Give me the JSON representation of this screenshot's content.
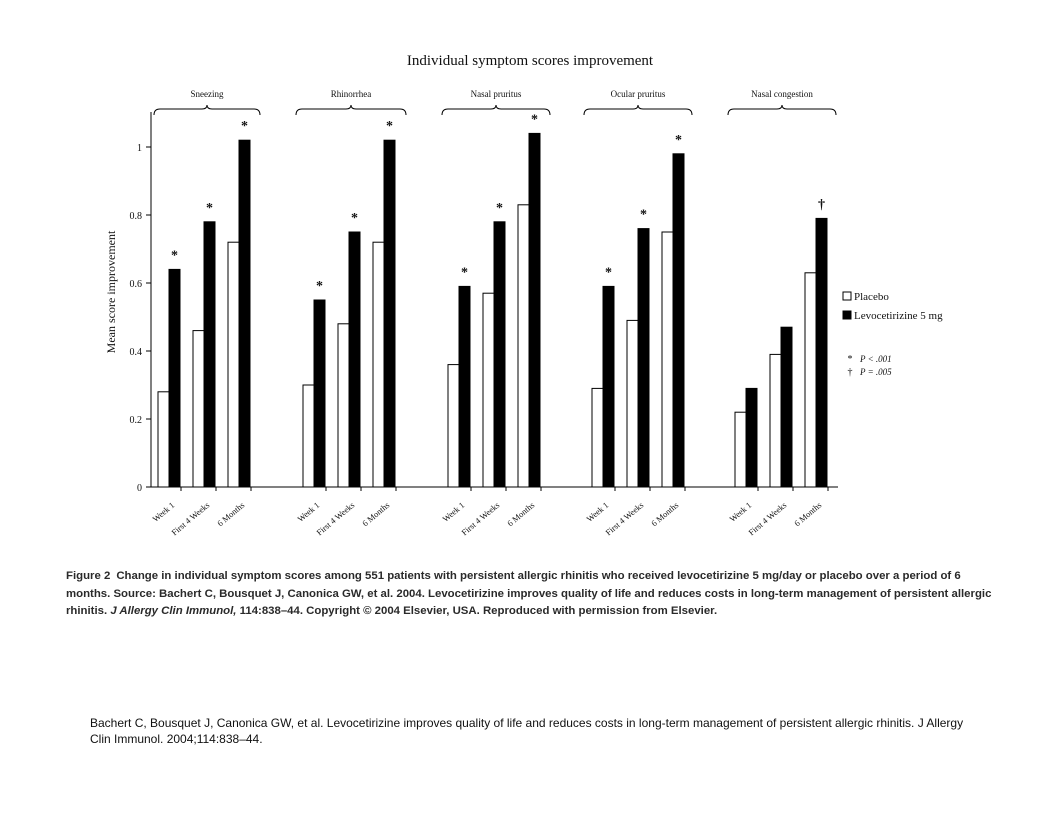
{
  "chart_data": {
    "type": "bar",
    "title": "Individual symptom scores improvement",
    "ylabel": "Mean score improvement",
    "ylim": [
      0,
      1.1
    ],
    "yticks": [
      0,
      0.2,
      0.4,
      0.6,
      0.8,
      1
    ],
    "ytick_labels": [
      "0",
      "0.2",
      "0.4",
      "0.6",
      "0.8",
      "1"
    ],
    "groups": [
      {
        "label": "Sneezing",
        "categories": [
          "Week 1",
          "First 4 Weeks",
          "6 Months"
        ],
        "placebo": [
          0.28,
          0.46,
          0.72
        ],
        "levocetirizine": [
          0.64,
          0.78,
          1.02
        ],
        "markers": [
          "*",
          "*",
          "*"
        ]
      },
      {
        "label": "Rhinorrhea",
        "categories": [
          "Week 1",
          "First 4 Weeks",
          "6 Months"
        ],
        "placebo": [
          0.3,
          0.48,
          0.72
        ],
        "levocetirizine": [
          0.55,
          0.75,
          1.02
        ],
        "markers": [
          "*",
          "*",
          "*"
        ]
      },
      {
        "label": "Nasal pruritus",
        "categories": [
          "Week 1",
          "First 4 Weeks",
          "6 Months"
        ],
        "placebo": [
          0.36,
          0.57,
          0.83
        ],
        "levocetirizine": [
          0.59,
          0.78,
          1.04
        ],
        "markers": [
          "*",
          "*",
          "*"
        ]
      },
      {
        "label": "Ocular pruritus",
        "categories": [
          "Week 1",
          "First 4 Weeks",
          "6 Months"
        ],
        "placebo": [
          0.29,
          0.49,
          0.75
        ],
        "levocetirizine": [
          0.59,
          0.76,
          0.98
        ],
        "markers": [
          "*",
          "*",
          "*"
        ]
      },
      {
        "label": "Nasal congestion",
        "categories": [
          "Week 1",
          "First 4 Weeks",
          "6 Months"
        ],
        "placebo": [
          0.22,
          0.39,
          0.63
        ],
        "levocetirizine": [
          0.29,
          0.47,
          0.79
        ],
        "markers": [
          "",
          "",
          "†"
        ]
      }
    ],
    "series": [
      {
        "name": "Placebo",
        "color": "#ffffff"
      },
      {
        "name": "Levocetirizine 5 mg",
        "color": "#000000"
      }
    ],
    "significance_notes": [
      {
        "symbol": "*",
        "text": "P < .001"
      },
      {
        "symbol": "†",
        "text": "P = .005"
      }
    ],
    "legend_position": "right",
    "grid": false
  },
  "caption": {
    "label": "Figure 2",
    "text_before_journal": "Change in individual symptom scores among 551 patients with persistent allergic rhinitis who received levocetirizine 5 mg/day or placebo over a period of 6 months. Source: Bachert C, Bousquet J, Canonica GW, et al. 2004. Levocetirizine improves quality of life and reduces costs in long-term management of persistent allergic rhinitis.",
    "journal": "J Allergy Clin Immunol,",
    "text_after_journal": "114:838–44. Copyright © 2004 Elsevier, USA. Reproduced with permission from Elsevier."
  },
  "footer_reference": "Bachert C, Bousquet J, Canonica GW, et al. Levocetirizine improves quality of life and reduces costs in long-term management of persistent allergic rhinitis. J Allergy Clin Immunol. 2004;114:838–44."
}
